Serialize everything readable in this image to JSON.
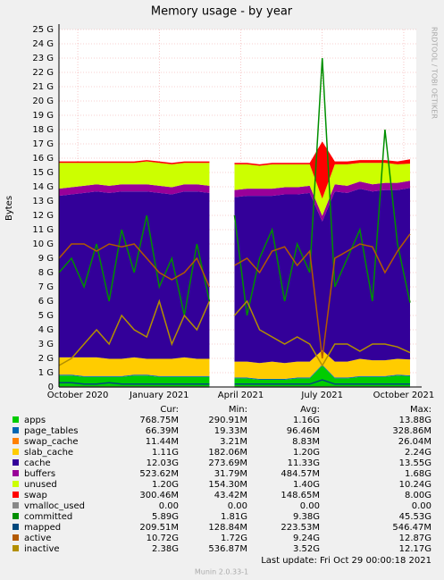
{
  "chart_data": {
    "type": "munin",
    "title": "Memory usage - by year",
    "y_label": "Bytes",
    "side_text": "RRDTOOL / TOBI OETIKER",
    "footer": "Last update:  Fri Oct 29 00:00:18 2021",
    "version": "Munin 2.0.33-1",
    "stats_header": [
      "Cur:",
      "Min:",
      "Avg:",
      "Max:"
    ],
    "xlim": [
      0,
      57
    ],
    "xticks": [
      {
        "value": 3,
        "label": "October 2020"
      },
      {
        "value": 16,
        "label": "January 2021"
      },
      {
        "value": 29,
        "label": "April 2021"
      },
      {
        "value": 42,
        "label": "July 2021"
      },
      {
        "value": 55,
        "label": "October 2021"
      }
    ],
    "ylim": [
      0,
      25
    ],
    "yticks": [
      0,
      {
        "value": 1,
        "label": "1 G"
      },
      {
        "value": 2,
        "label": "2 G"
      },
      {
        "value": 3,
        "label": "3 G"
      },
      {
        "value": 4,
        "label": "4 G"
      },
      {
        "value": 5,
        "label": "5 G"
      },
      {
        "value": 6,
        "label": "6 G"
      },
      {
        "value": 7,
        "label": "7 G"
      },
      {
        "value": 8,
        "label": "8 G"
      },
      {
        "value": 9,
        "label": "9 G"
      },
      {
        "value": 10,
        "label": "10 G"
      },
      {
        "value": 11,
        "label": "11 G"
      },
      {
        "value": 12,
        "label": "12 G"
      },
      {
        "value": 13,
        "label": "13 G"
      },
      {
        "value": 14,
        "label": "14 G"
      },
      {
        "value": 15,
        "label": "15 G"
      },
      {
        "value": 16,
        "label": "16 G"
      },
      {
        "value": 17,
        "label": "17 G"
      },
      {
        "value": 18,
        "label": "18 G"
      },
      {
        "value": 19,
        "label": "19 G"
      },
      {
        "value": 20,
        "label": "20 G"
      },
      {
        "value": 21,
        "label": "21 G"
      },
      {
        "value": 22,
        "label": "22 G"
      },
      {
        "value": 23,
        "label": "23 G"
      },
      {
        "value": 24,
        "label": "24 G"
      },
      {
        "value": 25,
        "label": "25 G"
      }
    ],
    "grid": true,
    "x": [
      0,
      2,
      4,
      6,
      8,
      10,
      12,
      14,
      16,
      18,
      20,
      22,
      24,
      26,
      28,
      30,
      32,
      34,
      36,
      38,
      40,
      42,
      44,
      46,
      48,
      50,
      52,
      54,
      56
    ],
    "series": [
      {
        "name": "apps",
        "color": "#00cc00",
        "stack": true,
        "stats": [
          "768.75M",
          "290.91M",
          "1.16G",
          "13.88G"
        ],
        "values": [
          0.8,
          0.8,
          0.7,
          0.7,
          0.7,
          0.7,
          0.8,
          0.8,
          0.7,
          0.7,
          0.7,
          0.7,
          0.7,
          null,
          0.6,
          0.6,
          0.5,
          0.5,
          0.5,
          0.6,
          0.6,
          1.5,
          0.6,
          0.6,
          0.7,
          0.7,
          0.7,
          0.8,
          0.75
        ]
      },
      {
        "name": "page_tables",
        "color": "#0066b3",
        "stack": true,
        "stats": [
          "66.39M",
          "19.33M",
          "96.46M",
          "328.86M"
        ],
        "values": [
          0.06,
          0.06,
          0.06,
          0.06,
          0.06,
          0.06,
          0.06,
          0.06,
          0.06,
          0.06,
          0.06,
          0.06,
          0.06,
          null,
          0.06,
          0.06,
          0.06,
          0.06,
          0.06,
          0.06,
          0.06,
          0.06,
          0.06,
          0.06,
          0.06,
          0.06,
          0.06,
          0.06,
          0.06
        ]
      },
      {
        "name": "swap_cache",
        "color": "#ff8000",
        "stack": true,
        "stats": [
          "11.44M",
          "3.21M",
          "8.83M",
          "26.04M"
        ],
        "values": [
          0.01,
          0.01,
          0.01,
          0.01,
          0.01,
          0.01,
          0.01,
          0.01,
          0.01,
          0.01,
          0.01,
          0.01,
          0.01,
          null,
          0.01,
          0.01,
          0.01,
          0.01,
          0.01,
          0.01,
          0.01,
          0.01,
          0.01,
          0.01,
          0.01,
          0.01,
          0.01,
          0.01,
          0.01
        ]
      },
      {
        "name": "slab_cache",
        "color": "#ffcc00",
        "stack": true,
        "stats": [
          "1.11G",
          "182.06M",
          "1.20G",
          "2.24G"
        ],
        "values": [
          1.2,
          1.2,
          1.3,
          1.3,
          1.2,
          1.2,
          1.2,
          1.1,
          1.2,
          1.2,
          1.3,
          1.2,
          1.2,
          null,
          1.1,
          1.1,
          1.1,
          1.2,
          1.1,
          1.1,
          1.1,
          1.0,
          1.1,
          1.1,
          1.2,
          1.1,
          1.1,
          1.1,
          1.1
        ]
      },
      {
        "name": "cache",
        "color": "#330099",
        "stack": true,
        "stats": [
          "12.03G",
          "273.69M",
          "11.33G",
          "13.55G"
        ],
        "values": [
          11.3,
          11.4,
          11.5,
          11.6,
          11.6,
          11.7,
          11.6,
          11.7,
          11.6,
          11.5,
          11.6,
          11.7,
          11.6,
          null,
          11.5,
          11.6,
          11.7,
          11.6,
          11.8,
          11.7,
          11.8,
          9.0,
          11.9,
          11.8,
          11.9,
          11.8,
          11.9,
          11.8,
          12.0
        ]
      },
      {
        "name": "buffers",
        "color": "#990099",
        "stack": true,
        "stats": [
          "523.62M",
          "31.79M",
          "484.57M",
          "1.68G"
        ],
        "values": [
          0.5,
          0.5,
          0.5,
          0.5,
          0.5,
          0.5,
          0.5,
          0.5,
          0.5,
          0.5,
          0.5,
          0.5,
          0.5,
          null,
          0.5,
          0.5,
          0.5,
          0.5,
          0.5,
          0.5,
          0.5,
          0.4,
          0.5,
          0.5,
          0.5,
          0.5,
          0.5,
          0.5,
          0.5
        ]
      },
      {
        "name": "unused",
        "color": "#ccff00",
        "stack": true,
        "stats": [
          "1.20G",
          "154.30M",
          "1.40G",
          "10.24G"
        ],
        "values": [
          1.8,
          1.7,
          1.6,
          1.5,
          1.6,
          1.5,
          1.5,
          1.6,
          1.6,
          1.6,
          1.5,
          1.5,
          1.6,
          null,
          1.8,
          1.7,
          1.6,
          1.7,
          1.6,
          1.6,
          1.5,
          1.2,
          1.4,
          1.5,
          1.3,
          1.5,
          1.4,
          1.3,
          1.2
        ]
      },
      {
        "name": "swap",
        "color": "#ff0000",
        "stack": true,
        "stats": [
          "300.46M",
          "43.42M",
          "148.65M",
          "8.00G"
        ],
        "values": [
          0.1,
          0.1,
          0.1,
          0.1,
          0.1,
          0.1,
          0.1,
          0.1,
          0.1,
          0.1,
          0.1,
          0.1,
          0.1,
          null,
          0.1,
          0.1,
          0.1,
          0.1,
          0.1,
          0.1,
          0.1,
          4.0,
          0.2,
          0.2,
          0.2,
          0.2,
          0.2,
          0.2,
          0.3
        ]
      },
      {
        "name": "vmalloc_used",
        "color": "#888888",
        "stack": false,
        "stats": [
          "0.00",
          "0.00",
          "0.00",
          "0.00"
        ],
        "values": [
          0,
          0,
          0,
          0,
          0,
          0,
          0,
          0,
          0,
          0,
          0,
          0,
          0,
          null,
          0,
          0,
          0,
          0,
          0,
          0,
          0,
          0,
          0,
          0,
          0,
          0,
          0,
          0,
          0
        ]
      },
      {
        "name": "committed",
        "color": "#008f00",
        "stack": false,
        "stats": [
          "5.89G",
          "1.81G",
          "9.38G",
          "45.53G"
        ],
        "values": [
          8,
          9,
          7,
          10,
          6,
          11,
          8,
          12,
          7,
          9,
          5,
          10,
          6,
          null,
          12,
          5,
          9,
          11,
          6,
          10,
          8,
          23,
          7,
          9,
          11,
          6,
          18,
          10,
          5.9
        ]
      },
      {
        "name": "mapped",
        "color": "#00487d",
        "stack": false,
        "stats": [
          "209.51M",
          "128.84M",
          "223.53M",
          "546.47M"
        ],
        "values": [
          0.3,
          0.3,
          0.2,
          0.2,
          0.3,
          0.2,
          0.2,
          0.2,
          0.2,
          0.2,
          0.2,
          0.2,
          0.2,
          null,
          0.2,
          0.2,
          0.2,
          0.2,
          0.2,
          0.2,
          0.2,
          0.5,
          0.2,
          0.2,
          0.2,
          0.2,
          0.2,
          0.2,
          0.2
        ]
      },
      {
        "name": "active",
        "color": "#b35a00",
        "stack": false,
        "stats": [
          "10.72G",
          "1.72G",
          "9.24G",
          "12.87G"
        ],
        "values": [
          9,
          10,
          10,
          9.5,
          10,
          9.8,
          10,
          9,
          8,
          7.5,
          8,
          9,
          7,
          null,
          8.5,
          9,
          8,
          9.5,
          9.8,
          8.5,
          9.5,
          2,
          9,
          9.5,
          10,
          9.8,
          8,
          9.5,
          10.7
        ]
      },
      {
        "name": "inactive",
        "color": "#b38f00",
        "stack": false,
        "stats": [
          "2.38G",
          "536.87M",
          "3.52G",
          "12.17G"
        ],
        "values": [
          1.5,
          2,
          3,
          4,
          3,
          5,
          4,
          3.5,
          6,
          3,
          5,
          4,
          6,
          null,
          5,
          6,
          4,
          3.5,
          3,
          3.5,
          3,
          1.5,
          3,
          3,
          2.5,
          3,
          3,
          2.8,
          2.4
        ]
      }
    ]
  }
}
